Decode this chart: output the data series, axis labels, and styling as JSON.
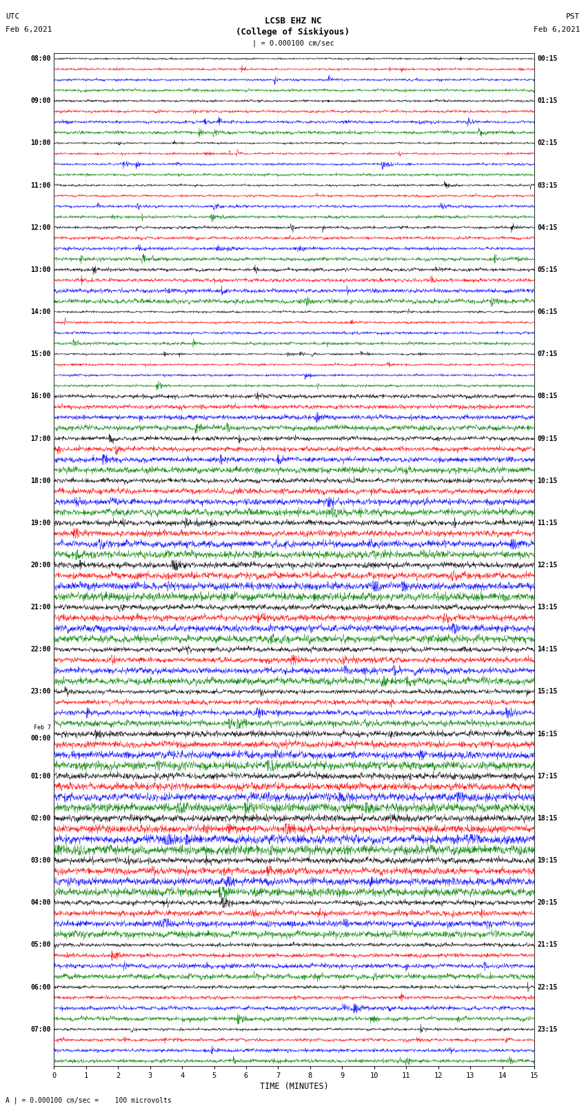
{
  "title_line1": "LCSB EHZ NC",
  "title_line2": "(College of Siskiyous)",
  "scale_label": "| = 0.000100 cm/sec",
  "bottom_label": "A | = 0.000100 cm/sec =    100 microvolts",
  "xlabel": "TIME (MINUTES)",
  "colors": [
    "black",
    "red",
    "blue",
    "green"
  ],
  "n_groups": 24,
  "traces_per_group": 4,
  "minutes_per_row": 15,
  "left_times_utc": [
    "08:00",
    "09:00",
    "10:00",
    "11:00",
    "12:00",
    "13:00",
    "14:00",
    "15:00",
    "16:00",
    "17:00",
    "18:00",
    "19:00",
    "20:00",
    "21:00",
    "22:00",
    "23:00",
    "Feb 7\n00:00",
    "01:00",
    "02:00",
    "03:00",
    "04:00",
    "05:00",
    "06:00",
    "07:00"
  ],
  "right_times_pst": [
    "00:15",
    "01:15",
    "02:15",
    "03:15",
    "04:15",
    "05:15",
    "06:15",
    "07:15",
    "08:15",
    "09:15",
    "10:15",
    "11:15",
    "12:15",
    "13:15",
    "14:15",
    "15:15",
    "16:15",
    "17:15",
    "18:15",
    "19:15",
    "20:15",
    "21:15",
    "22:15",
    "23:15"
  ],
  "background_color": "white",
  "fig_width": 8.5,
  "fig_height": 16.13,
  "dpi": 100,
  "amp_scale": 0.3,
  "noise_levels": [
    0.18,
    0.22,
    0.18,
    0.2,
    0.25,
    0.3,
    0.2,
    0.18,
    0.35,
    0.4,
    0.45,
    0.5,
    0.55,
    0.5,
    0.45,
    0.4,
    0.55,
    0.6,
    0.65,
    0.55,
    0.45,
    0.35,
    0.3,
    0.25
  ]
}
